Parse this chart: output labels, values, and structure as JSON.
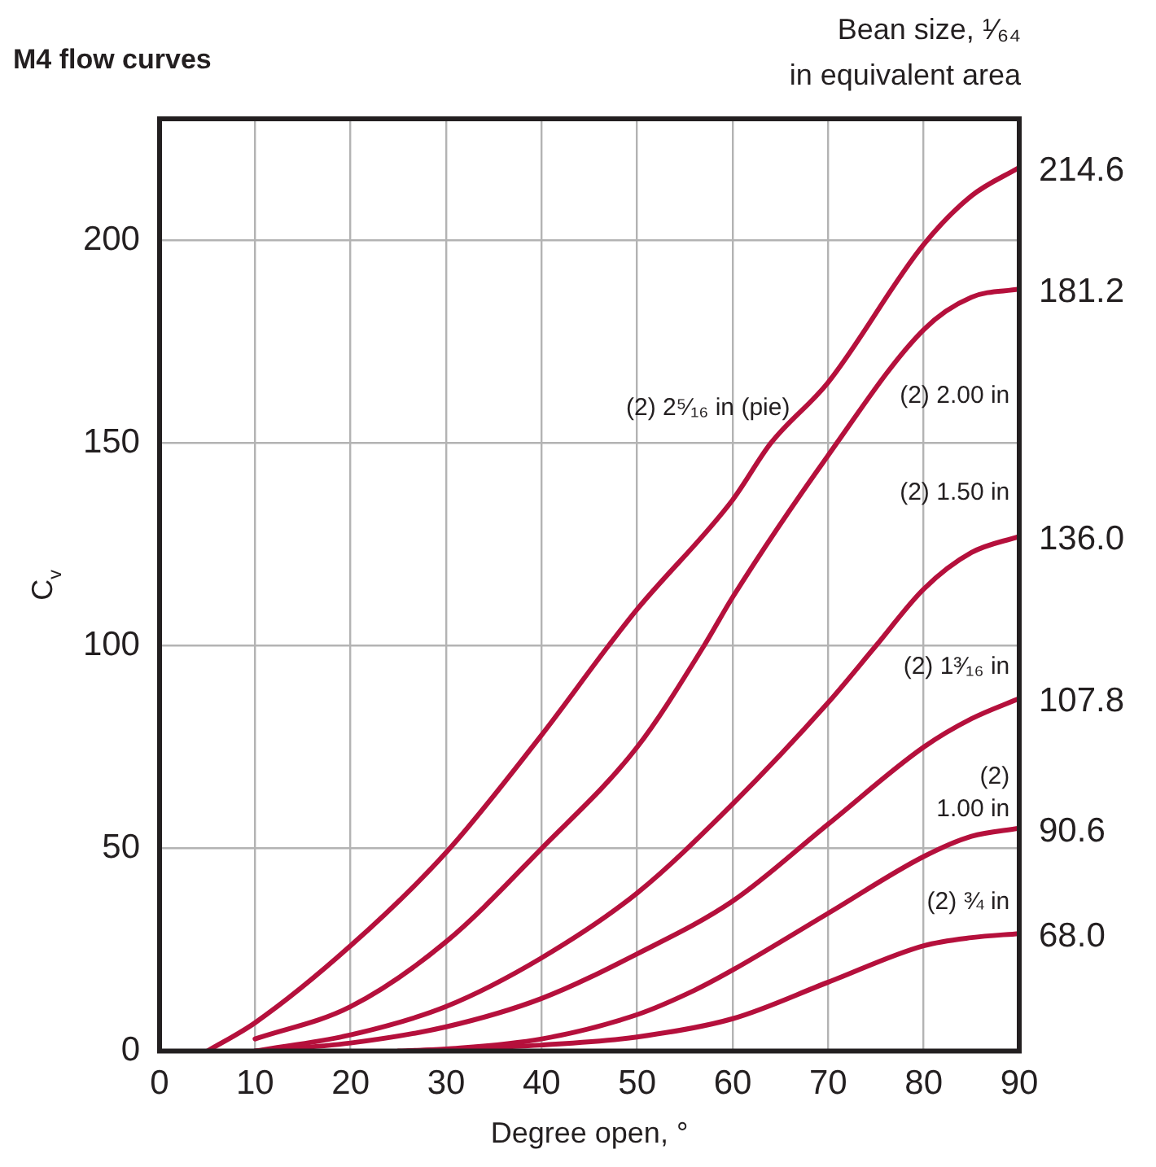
{
  "chart_data": {
    "type": "line",
    "title": "M4 flow curves",
    "xlabel": "Degree open, °",
    "ylabel": "C$_{v}$",
    "xlim": [
      0,
      90
    ],
    "xticks": [
      0,
      10,
      20,
      30,
      40,
      50,
      60,
      70,
      80,
      90
    ],
    "ylim": [
      0,
      230
    ],
    "yticks": [
      0,
      50,
      100,
      150,
      200
    ],
    "grid": true,
    "legend": false,
    "marker": "none",
    "line_style": "solid",
    "series": [
      {
        "name": "(2) 2⁵⁄₁₆ in (pie)",
        "color": "#b5103c",
        "x": [
          5,
          10,
          20,
          30,
          40,
          47,
          50,
          60,
          64,
          70,
          80,
          85,
          90
        ],
        "values": [
          0,
          7,
          26,
          49,
          78,
          100,
          109,
          136,
          150,
          165,
          199,
          211,
          218
        ]
      },
      {
        "name": "(2) 2.00 in",
        "color": "#b5103c",
        "x": [
          10,
          20,
          30,
          40,
          50,
          57,
          60,
          70,
          80,
          85,
          90
        ],
        "values": [
          3,
          11,
          27,
          50,
          75,
          100,
          112,
          147,
          178,
          186,
          188
        ]
      },
      {
        "name": "(2) 1.50 in",
        "color": "#b5103c",
        "x": [
          10,
          20,
          30,
          40,
          50,
          60,
          70,
          75,
          80,
          85,
          90
        ],
        "values": [
          0,
          4,
          11,
          23,
          39,
          61,
          86,
          100,
          114,
          123,
          127
        ]
      },
      {
        "name": "(2) 1³⁄₁₆ in",
        "color": "#b5103c",
        "x": [
          10,
          20,
          30,
          40,
          50,
          60,
          70,
          80,
          85,
          90
        ],
        "values": [
          0,
          2,
          6,
          13,
          24,
          37,
          56,
          75,
          82,
          87
        ]
      },
      {
        "name": "(2) 1.00 in",
        "color": "#b5103c",
        "x": [
          26,
          30,
          40,
          50,
          56,
          60,
          70,
          80,
          85,
          90
        ],
        "values": [
          0,
          0.5,
          3,
          9,
          15,
          20,
          34,
          48,
          53,
          55
        ]
      },
      {
        "name": "(2) ¾ in",
        "color": "#b5103c",
        "x": [
          25,
          40,
          50,
          60,
          70,
          80,
          85,
          90
        ],
        "values": [
          0,
          1.5,
          3.5,
          8,
          17,
          26,
          28,
          29
        ]
      }
    ],
    "annotations": [
      "Bean size, ¹⁄₆₄ in equivalent area",
      "214.6",
      "181.2",
      "136.0",
      "107.8",
      "90.6",
      "68.0"
    ]
  }
}
